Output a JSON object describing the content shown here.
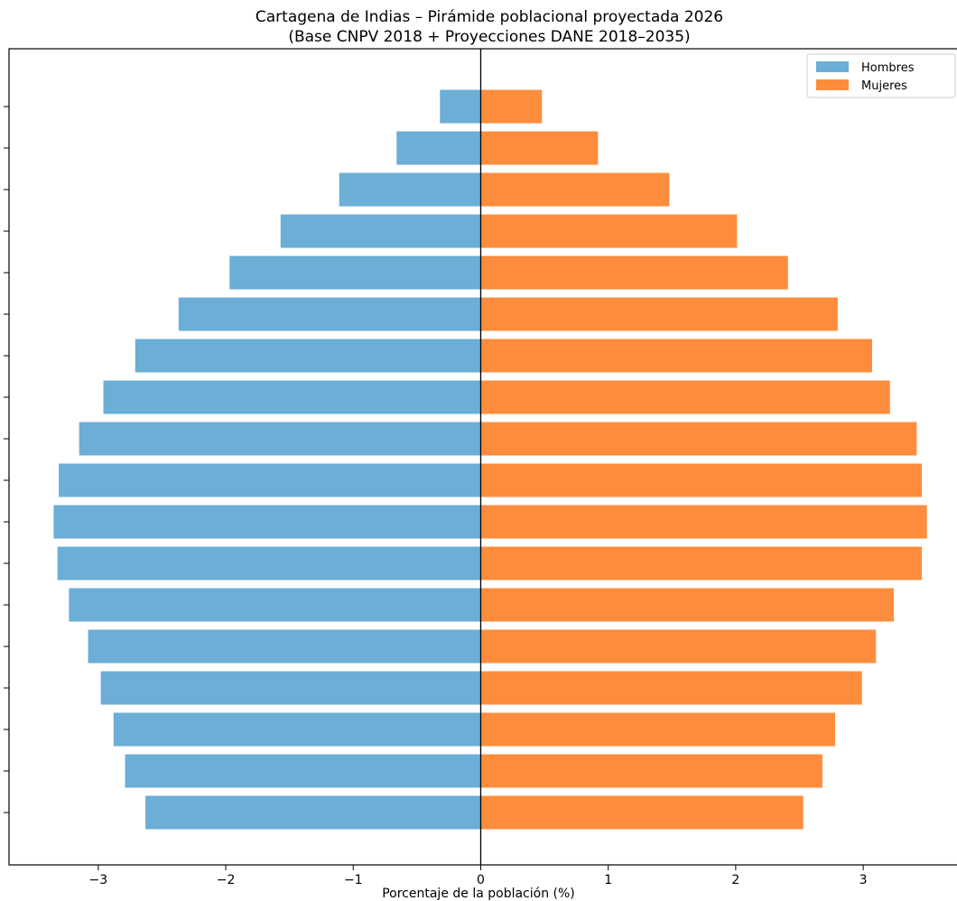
{
  "chart_data": {
    "type": "bar",
    "orientation": "horizontal",
    "title": "Cartagena de Indias – Pirámide poblacional proyectada 2026",
    "subtitle": "(Base CNPV 2018 + Proyecciones DANE 2018–2035)",
    "xlabel": "Porcentaje de la población (%)",
    "ylabel": "",
    "xlim": [
      -3.7,
      3.75
    ],
    "x_ticks": [
      -3,
      -2,
      -1,
      0,
      1,
      2,
      3
    ],
    "x_tick_labels": [
      "−3",
      "−2",
      "−1",
      "0",
      "1",
      "2",
      "3"
    ],
    "y_tick_labels_visible": false,
    "grid": false,
    "legend_position": "top-right",
    "series": [
      {
        "name": "Hombres",
        "color": "#6baed6",
        "values": [
          -2.63,
          -2.79,
          -2.88,
          -2.98,
          -3.08,
          -3.23,
          -3.32,
          -3.35,
          -3.31,
          -3.15,
          -2.96,
          -2.71,
          -2.37,
          -1.97,
          -1.57,
          -1.11,
          -0.66,
          -0.32
        ]
      },
      {
        "name": "Mujeres",
        "color": "#fd8d3c",
        "values": [
          2.53,
          2.68,
          2.78,
          2.99,
          3.1,
          3.24,
          3.46,
          3.5,
          3.46,
          3.42,
          3.21,
          3.07,
          2.8,
          2.41,
          2.01,
          1.48,
          0.92,
          0.48
        ]
      }
    ]
  }
}
